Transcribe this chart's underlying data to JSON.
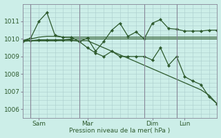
{
  "background_color": "#cceee8",
  "grid_color": "#aacccc",
  "line_color": "#2d5a2d",
  "ylabel": "Pression niveau de la mer( hPa )",
  "ylim": [
    1005.5,
    1012.0
  ],
  "yticks": [
    1006,
    1007,
    1008,
    1009,
    1010,
    1011
  ],
  "xlim": [
    0,
    96
  ],
  "x_day_labels": [
    {
      "label": "Sam",
      "x": 8
    },
    {
      "label": "Mar",
      "x": 32
    },
    {
      "label": "Dim",
      "x": 64
    },
    {
      "label": "Lun",
      "x": 80
    }
  ],
  "x_day_vlines": [
    4,
    28,
    60,
    76
  ],
  "series": [
    {
      "x": [
        0,
        4,
        8,
        12,
        16,
        20,
        24,
        28,
        32,
        36,
        40,
        44,
        48,
        52,
        56,
        60,
        64,
        68,
        72,
        76,
        80,
        84,
        88,
        92,
        96
      ],
      "y": [
        1009.9,
        1009.9,
        1009.9,
        1009.9,
        1009.9,
        1009.95,
        1010.0,
        1010.0,
        1010.0,
        1010.0,
        1010.0,
        1010.0,
        1010.0,
        1010.0,
        1010.0,
        1010.0,
        1010.0,
        1010.0,
        1010.0,
        1010.0,
        1010.0,
        1010.0,
        1010.0,
        1010.0,
        1010.0
      ],
      "has_markers": false
    },
    {
      "x": [
        0,
        4,
        8,
        12,
        16,
        20,
        24,
        28,
        32,
        36,
        40,
        44,
        48,
        52,
        56,
        60,
        64,
        68,
        72,
        76,
        80,
        84,
        88,
        92,
        96
      ],
      "y": [
        1009.9,
        1010.0,
        1010.1,
        1010.15,
        1010.15,
        1010.1,
        1010.1,
        1010.1,
        1010.1,
        1010.1,
        1010.1,
        1010.1,
        1010.1,
        1010.1,
        1010.1,
        1010.1,
        1010.1,
        1010.1,
        1010.1,
        1010.1,
        1010.1,
        1010.1,
        1010.1,
        1010.1,
        1010.1
      ],
      "has_markers": false
    },
    {
      "x": [
        0,
        4,
        8,
        12,
        16,
        20,
        24,
        28,
        32,
        36,
        40,
        44,
        48,
        52,
        56,
        60,
        64,
        68,
        72,
        76,
        80,
        84,
        88,
        92,
        96
      ],
      "y": [
        1009.9,
        1010.05,
        1011.0,
        1011.5,
        1010.2,
        1010.1,
        1010.1,
        1009.85,
        1010.05,
        1009.3,
        1009.85,
        1010.5,
        1010.9,
        1010.15,
        1010.4,
        1010.0,
        1010.9,
        1011.1,
        1010.6,
        1010.55,
        1010.45,
        1010.45,
        1010.45,
        1010.5,
        1010.5
      ],
      "has_markers": true
    },
    {
      "x": [
        0,
        4,
        8,
        12,
        16,
        20,
        24,
        28,
        32,
        36,
        40,
        44,
        48,
        52,
        56,
        60,
        64,
        68,
        72,
        76,
        80,
        84,
        88,
        92,
        96
      ],
      "y": [
        1009.9,
        1009.9,
        1009.9,
        1009.9,
        1009.9,
        1009.9,
        1009.9,
        1009.9,
        1009.9,
        1009.7,
        1009.5,
        1009.3,
        1009.1,
        1008.9,
        1008.7,
        1008.5,
        1008.3,
        1008.1,
        1007.9,
        1007.7,
        1007.5,
        1007.3,
        1007.1,
        1006.8,
        1006.3
      ],
      "has_markers": false
    },
    {
      "x": [
        0,
        4,
        8,
        12,
        16,
        20,
        24,
        28,
        32,
        36,
        40,
        44,
        48,
        52,
        56,
        60,
        64,
        68,
        72,
        76,
        80,
        84,
        88,
        92,
        96
      ],
      "y": [
        1009.85,
        1009.9,
        1009.95,
        1009.95,
        1009.95,
        1009.95,
        1009.95,
        1009.85,
        1009.5,
        1009.2,
        1009.0,
        1009.3,
        1009.0,
        1009.0,
        1009.0,
        1009.0,
        1008.8,
        1009.5,
        1008.5,
        1009.0,
        1007.85,
        1007.6,
        1007.4,
        1006.7,
        1006.3
      ],
      "has_markers": true
    }
  ]
}
